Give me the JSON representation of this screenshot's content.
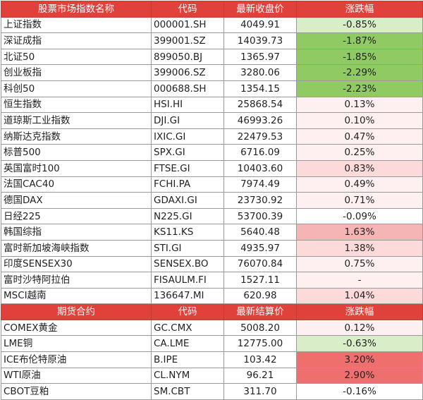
{
  "colors": {
    "header_bg": "#e0423b",
    "header_text": "#ffffff",
    "green_strong": "#8fca62",
    "green_light": "#d9eec8",
    "red_strong": "#ef6f6f",
    "red_medium": "#f6b5b5",
    "red_light": "#fcdada",
    "red_faint": "#fef0f0",
    "neutral": "#ffffff"
  },
  "index_section": {
    "headers": [
      "股票市场指数名称",
      "代码",
      "最新收盘价",
      "涨跌幅"
    ],
    "rows": [
      {
        "name": "上证指数",
        "code": "000001.SH",
        "value": "4049.91",
        "change": "-0.85%",
        "tone": "green_light"
      },
      {
        "name": "深证成指",
        "code": "399001.SZ",
        "value": "14039.73",
        "change": "-1.87%",
        "tone": "green_strong"
      },
      {
        "name": "北证50",
        "code": "899050.BJ",
        "value": "1365.97",
        "change": "-1.85%",
        "tone": "green_strong"
      },
      {
        "name": "创业板指",
        "code": "399006.SZ",
        "value": "3280.06",
        "change": "-2.29%",
        "tone": "green_strong"
      },
      {
        "name": "科创50",
        "code": "000688.SH",
        "value": "1354.15",
        "change": "-2.23%",
        "tone": "green_strong"
      },
      {
        "name": "恒生指数",
        "code": "HSI.HI",
        "value": "25868.54",
        "change": "0.13%",
        "tone": "red_faint"
      },
      {
        "name": "道琼斯工业指数",
        "code": "DJI.GI",
        "value": "46993.26",
        "change": "0.10%",
        "tone": "red_faint"
      },
      {
        "name": "纳斯达克指数",
        "code": "IXIC.GI",
        "value": "22479.53",
        "change": "0.47%",
        "tone": "red_faint"
      },
      {
        "name": "标普500",
        "code": "SPX.GI",
        "value": "6716.09",
        "change": "0.25%",
        "tone": "red_faint"
      },
      {
        "name": "英国富时100",
        "code": "FTSE.GI",
        "value": "10403.60",
        "change": "0.83%",
        "tone": "red_light"
      },
      {
        "name": "法国CAC40",
        "code": "FCHI.PA",
        "value": "7974.49",
        "change": "0.49%",
        "tone": "red_faint"
      },
      {
        "name": "德国DAX",
        "code": "GDAXI.GI",
        "value": "23730.92",
        "change": "0.71%",
        "tone": "red_faint"
      },
      {
        "name": "日经225",
        "code": "N225.GI",
        "value": "53700.39",
        "change": "-0.09%",
        "tone": "neutral"
      },
      {
        "name": "韩国综指",
        "code": "KS11.KS",
        "value": "5640.48",
        "change": "1.63%",
        "tone": "red_medium"
      },
      {
        "name": "富时新加坡海峡指数",
        "code": "STI.GI",
        "value": "4935.97",
        "change": "1.38%",
        "tone": "red_light"
      },
      {
        "name": "印度SENSEX30",
        "code": "SENSEX.BO",
        "value": "76070.84",
        "change": "0.75%",
        "tone": "red_faint"
      },
      {
        "name": "富时沙特阿拉伯",
        "code": "FISAULM.FI",
        "value": "1527.11",
        "change": "-",
        "tone": "red_faint"
      },
      {
        "name": "MSCI越南",
        "code": "136647.MI",
        "value": "620.98",
        "change": "1.04%",
        "tone": "red_light"
      }
    ]
  },
  "futures_section": {
    "headers": [
      "期货合约",
      "代码",
      "最新结算价",
      "涨跌幅"
    ],
    "rows": [
      {
        "name": "COMEX黄金",
        "code": "GC.CMX",
        "value": "5008.20",
        "change": "0.12%",
        "tone": "red_faint"
      },
      {
        "name": "LME铜",
        "code": "CA.LME",
        "value": "12775.00",
        "change": "-0.63%",
        "tone": "green_light"
      },
      {
        "name": "ICE布伦特原油",
        "code": "B.IPE",
        "value": "103.42",
        "change": "3.20%",
        "tone": "red_strong"
      },
      {
        "name": "WTI原油",
        "code": "CL.NYM",
        "value": "96.21",
        "change": "2.90%",
        "tone": "red_strong"
      },
      {
        "name": "CBOT豆粕",
        "code": "SM.CBT",
        "value": "311.70",
        "change": "-0.16%",
        "tone": "neutral"
      }
    ]
  }
}
